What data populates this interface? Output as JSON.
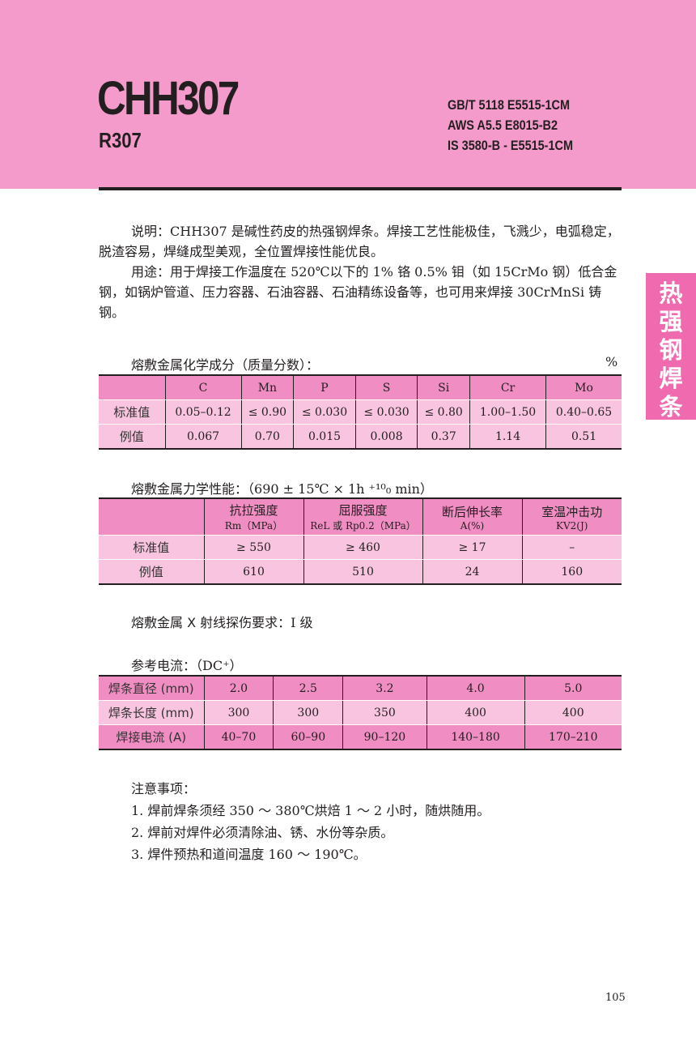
{
  "header": {
    "title": "CHH307",
    "subtitle": "R307",
    "standards": [
      "GB/T 5118 E5515-1CM",
      "AWS A5.5 E8015-B2",
      "IS 3580-B - E5515-1CM"
    ]
  },
  "side_tab": [
    "热",
    "强",
    "钢",
    "焊",
    "条"
  ],
  "description": {
    "label": "说明：",
    "text": "CHH307 是碱性药皮的热强钢焊条。焊接工艺性能极佳，飞溅少，电弧稳定，脱渣容易，焊缝成型美观，全位置焊接性能优良。"
  },
  "usage": {
    "label": "用途：",
    "text": "用于焊接工作温度在 520℃以下的 1% 铬 0.5% 钼（如 15CrMo 钢）低合金钢，如锅炉管道、压力容器、石油容器、石油精练设备等，也可用来焊接 30CrMnSi 铸钢。"
  },
  "chem": {
    "heading": "熔敷金属化学成分（质量分数）：",
    "unit": "%",
    "columns": [
      "",
      "C",
      "Mn",
      "P",
      "S",
      "Si",
      "Cr",
      "Mo"
    ],
    "rows": [
      [
        "标准值",
        "0.05–0.12",
        "≤ 0.90",
        "≤ 0.030",
        "≤ 0.030",
        "≤ 0.80",
        "1.00–1.50",
        "0.40–0.65"
      ],
      [
        "例值",
        "0.067",
        "0.70",
        "0.015",
        "0.008",
        "0.37",
        "1.14",
        "0.51"
      ]
    ]
  },
  "mech": {
    "heading": "熔敷金属力学性能：",
    "condition": "（690 ± 15℃ × 1h ⁺¹⁰₀ min）",
    "columns": [
      [
        "",
        ""
      ],
      [
        "抗拉强度",
        "Rm（MPa）"
      ],
      [
        "屈服强度",
        "ReL 或 Rp0.2（MPa）"
      ],
      [
        "断后伸长率",
        "A(%)"
      ],
      [
        "室温冲击功",
        "KV2(J)"
      ]
    ],
    "rows": [
      [
        "标准值",
        "≥ 550",
        "≥ 460",
        "≥ 17",
        "–"
      ],
      [
        "例值",
        "610",
        "510",
        "24",
        "160"
      ]
    ]
  },
  "xray": {
    "heading": "熔敷金属 X 射线探伤要求：",
    "value": "I 级"
  },
  "current": {
    "heading": "参考电流：",
    "type": "（DC⁺）",
    "rows": [
      [
        "焊条直径 (mm)",
        "2.0",
        "2.5",
        "3.2",
        "4.0",
        "5.0"
      ],
      [
        "焊条长度 (mm)",
        "300",
        "300",
        "350",
        "400",
        "400"
      ],
      [
        "焊接电流 (A)",
        "40–70",
        "60–90",
        "90–120",
        "140–180",
        "170–210"
      ]
    ]
  },
  "notes": {
    "heading": "注意事项：",
    "items": [
      "1. 焊前焊条须经 350 ～ 380℃烘焙 1 ～ 2 小时，随烘随用。",
      "2. 焊前对焊件必须清除油、锈、水份等杂质。",
      "3.  焊件预热和道间温度 160 ～ 190℃。"
    ]
  },
  "page_number": "105",
  "colors": {
    "band": "#f59bcb",
    "side_tab": "#f06ab0",
    "table_header": "#f08dc2",
    "table_row": "#f8c4df"
  }
}
